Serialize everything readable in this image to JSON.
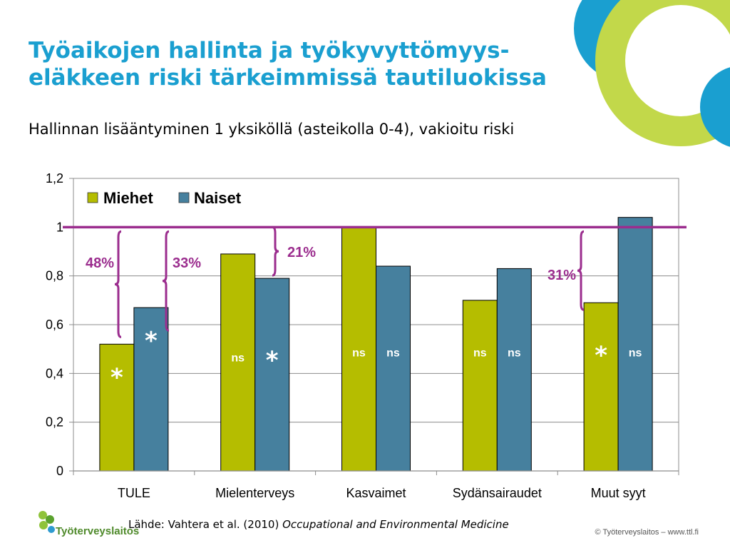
{
  "header": {
    "title_line1": "Työaikojen hallinta ja työkyvyttömyys-",
    "title_line2": "eläkkeen riski tärkeimmissä tautiluokissa",
    "subtitle": "Hallinnan lisääntyminen 1 yksiköllä (asteikolla 0-4), vakioitu riski"
  },
  "colors": {
    "title": "#1a9fd0",
    "miehet": "#b5bd00",
    "naiset": "#46809e",
    "reference_line": "#9b2d8e",
    "annotation": "#9b2d8e",
    "deco_blue": "#1a9fd0",
    "deco_green": "#c2d84a"
  },
  "chart_data": {
    "type": "bar",
    "categories": [
      "TULE",
      "Mielenterveys",
      "Kasvaimet",
      "Sydänsairaudet",
      "Muut syyt"
    ],
    "series": [
      {
        "name": "Miehet",
        "values": [
          0.52,
          0.89,
          1.0,
          0.7,
          0.69
        ],
        "markers": [
          "*",
          "ns",
          "ns",
          "ns",
          "*"
        ]
      },
      {
        "name": "Naiset",
        "values": [
          0.67,
          0.79,
          0.84,
          0.83,
          1.04
        ],
        "markers": [
          "*",
          "*",
          "ns",
          "ns",
          "ns"
        ]
      }
    ],
    "ylim": [
      0,
      1.2
    ],
    "yticks": [
      "0",
      "0,2",
      "0,4",
      "0,6",
      "0,8",
      "1",
      "1,2"
    ],
    "ytick_values": [
      0,
      0.2,
      0.4,
      0.6,
      0.8,
      1.0,
      1.2
    ],
    "reference_line": 1.0,
    "legend": {
      "placement": "top-left",
      "entries": [
        "Miehet",
        "Naiset"
      ]
    },
    "annotations": [
      {
        "label": "48%",
        "category": "TULE",
        "series": "Miehet",
        "from": 0.52,
        "to": 1.0
      },
      {
        "label": "33%",
        "category": "TULE",
        "series": "Naiset",
        "from": 0.67,
        "to": 1.0
      },
      {
        "label": "21%",
        "category": "Mielenterveys",
        "series": "Naiset",
        "from": 0.79,
        "to": 1.0
      },
      {
        "label": "31%",
        "category": "Muut syyt",
        "series": "Miehet",
        "from": 0.69,
        "to": 1.0
      }
    ],
    "grid": true
  },
  "footer": {
    "source_prefix": "Lähde: Vahtera et al. (2010)",
    "source_journal": "Occupational and Environmental Medicine",
    "copyright": "© Työterveyslaitos  –  www.ttl.fi",
    "logo_text": "Työterveyslaitos"
  }
}
